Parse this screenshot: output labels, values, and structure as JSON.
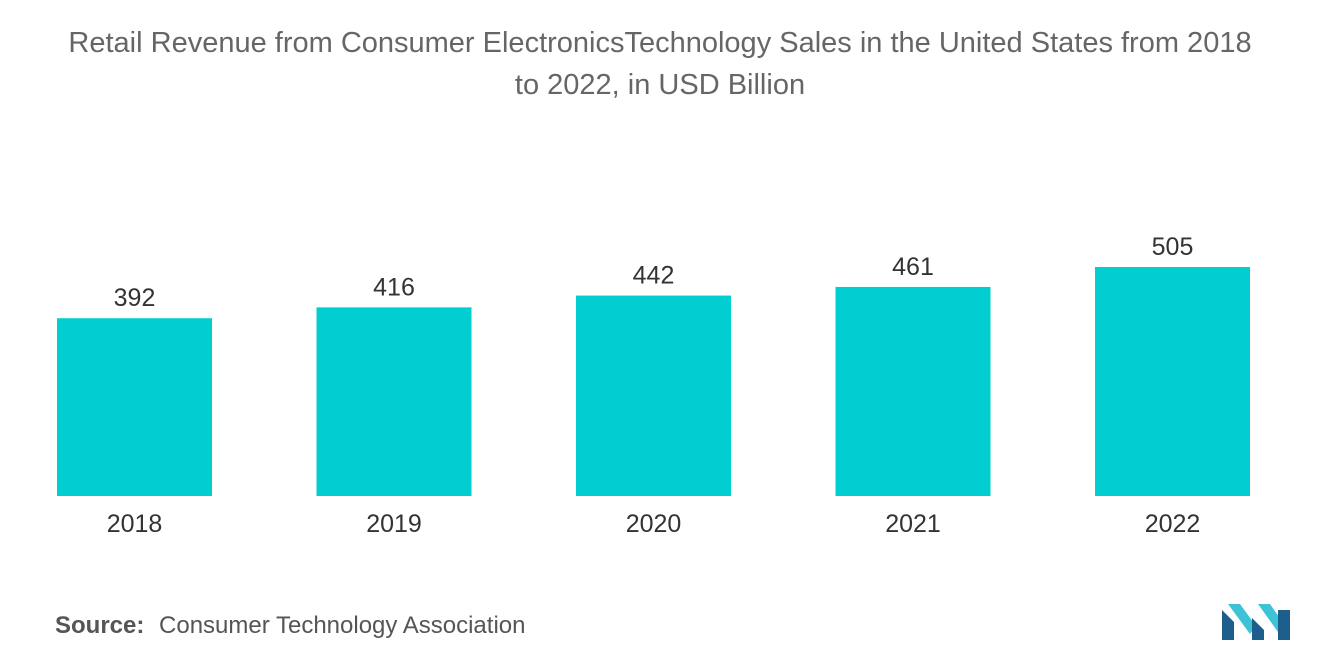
{
  "title_line1": "Retail Revenue from Consumer ElectronicsTechnology Sales in the United States from 2018",
  "title_line2": "to 2022, in USD Billion",
  "colors": {
    "bar": "#00CED1",
    "text": "#333333",
    "title": "#666666",
    "logo_dark": "#1d5e8c",
    "logo_light": "#3cc4d6"
  },
  "chart_data": {
    "type": "bar",
    "title": "Retail Revenue from Consumer ElectronicsTechnology Sales in the United States from 2018 to 2022, in USD Billion",
    "categories": [
      "2018",
      "2019",
      "2020",
      "2021",
      "2022"
    ],
    "values": [
      392,
      416,
      442,
      461,
      505
    ],
    "xlabel": "",
    "ylabel": "",
    "grid": false,
    "data_labels": true
  },
  "source": {
    "label": "Source:",
    "text": "Consumer Technology Association"
  },
  "logo": {
    "icon": "mordor-intelligence-logo-icon"
  }
}
